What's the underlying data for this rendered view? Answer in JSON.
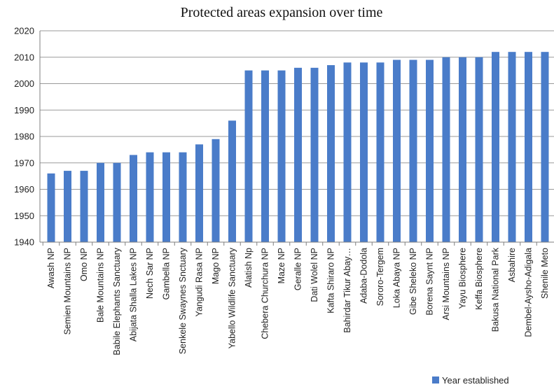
{
  "chart_data": {
    "type": "bar",
    "title": "Protected areas expansion over time",
    "xlabel": "",
    "ylabel": "",
    "ylim": [
      1940,
      2020
    ],
    "yticks": [
      1940,
      1950,
      1960,
      1970,
      1980,
      1990,
      2000,
      2010,
      2020
    ],
    "grid": "horizontal",
    "legend_position": "bottom-right",
    "bar_color": "#4a7cc9",
    "categories": [
      "Awash NP",
      "Semien Mountains NP",
      "Omo NP",
      "Bale Mountains NP",
      "Babile Elephants Sanctuary",
      "Abijata Shalla Lakes NP",
      "Nech Sar NP",
      "Gambella NP",
      "Senkele Swaynes Snctuary",
      "Yangudi Rasa NP",
      "Mago NP",
      "Yabello Wildlife Sanctuary",
      "Alatish Np",
      "Chebera Churchura NP",
      "Maze NP",
      "Geralle NP",
      "Dati Wolel  NP",
      "Kafta Shiraro NP",
      "Bahirdar Tikur Abay…",
      "Adaba-Dodola",
      "Sororo-Tergem",
      "Loka Abaya NP",
      "Gibe Sheleko NP",
      "Borena Saynt NP",
      "Arsi Mountains NP",
      "Yayu Biosphere",
      "Keffa Biosphere",
      "Bakusa National Park",
      "Asbahire",
      "Dembel-Aysho-Adigala",
      "Shenile Meto"
    ],
    "series": [
      {
        "name": "Year established",
        "values": [
          1966,
          1967,
          1967,
          1970,
          1970,
          1973,
          1974,
          1974,
          1974,
          1977,
          1979,
          1986,
          2005,
          2005,
          2005,
          2006,
          2006,
          2007,
          2008,
          2008,
          2008,
          2009,
          2009,
          2009,
          2010,
          2010,
          2010,
          2012,
          2012,
          2012,
          2012
        ]
      }
    ]
  }
}
